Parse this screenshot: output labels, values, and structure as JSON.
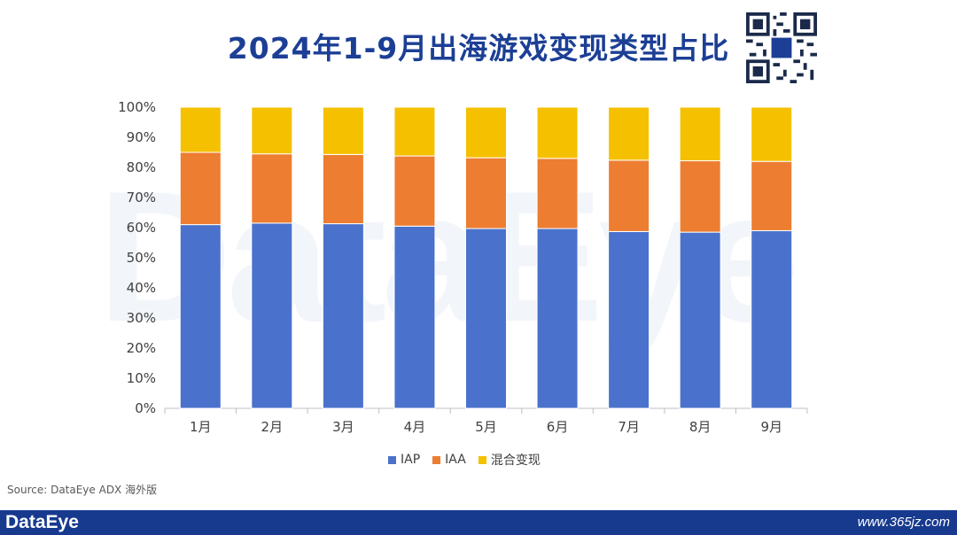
{
  "title": "2024年1-9月出海游戏变现类型占比",
  "watermark": "DataEye",
  "source": "Source: DataEye ADX 海外版",
  "footer": {
    "logo": "DataEye",
    "url": "www.365jz.com"
  },
  "colors": {
    "IAP": "#4a72cc",
    "IAA": "#ed7d31",
    "mixed": "#f5c000",
    "title": "#1c3f95",
    "footer": "#173a8f"
  },
  "chart_data": {
    "type": "bar",
    "stacked": true,
    "categories": [
      "1月",
      "2月",
      "3月",
      "4月",
      "5月",
      "6月",
      "7月",
      "8月",
      "9月"
    ],
    "series": [
      {
        "name": "IAP",
        "values": [
          61,
          61.5,
          61.3,
          60.5,
          59.7,
          59.7,
          58.7,
          58.5,
          59
        ]
      },
      {
        "name": "IAA",
        "values": [
          24,
          23,
          23,
          23.3,
          23.5,
          23.3,
          23.7,
          23.7,
          23
        ]
      },
      {
        "name": "混合变现",
        "values": [
          15,
          15.5,
          15.7,
          16.2,
          16.8,
          17,
          17.6,
          17.8,
          18
        ]
      }
    ],
    "ylim": [
      0,
      100
    ],
    "yticks": [
      "0%",
      "10%",
      "20%",
      "30%",
      "40%",
      "50%",
      "60%",
      "70%",
      "80%",
      "90%",
      "100%"
    ],
    "legend": "bottom",
    "grid": false
  }
}
